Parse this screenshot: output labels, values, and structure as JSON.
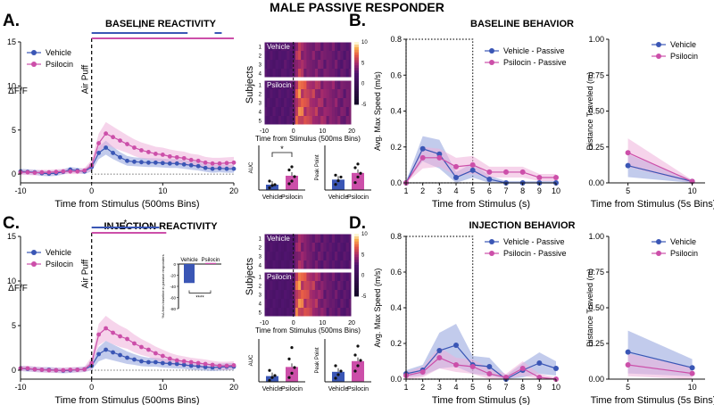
{
  "figure": {
    "title": "MALE PASSIVE RESPONDER",
    "panel_letters": [
      "A.",
      "B.",
      "C.",
      "D."
    ]
  },
  "colors": {
    "vehicle": "#3a56b5",
    "psilocin": "#cc4fa9",
    "vehicle_band": "#8fa0dd",
    "psilocin_band": "#eeb0da"
  },
  "chart_data": [
    {
      "id": "A-trace",
      "type": "line",
      "title": "BASELINE REACTIVITY",
      "xlabel": "Time from Stimulus (500ms Bins)",
      "ylabel": "ΔF/F",
      "xlim": [
        -10,
        20
      ],
      "ylim": [
        -1,
        15
      ],
      "xticks": [
        -10,
        0,
        10,
        20
      ],
      "yticks": [
        0,
        5,
        10,
        15
      ],
      "annotation": "Air Puff",
      "significance": "*",
      "sig_bars": [
        {
          "series": "Vehicle",
          "from": 0,
          "to": 13.5
        },
        {
          "series": "Vehicle",
          "from": 17.3,
          "to": 18.3
        },
        {
          "series": "Psilocin",
          "from": 0,
          "to": 20
        }
      ],
      "legend": [
        "Vehicle",
        "Psilocin"
      ],
      "legend_position": "top-left",
      "x": [
        -10,
        -9,
        -8,
        -7,
        -6,
        -5,
        -4,
        -3,
        -2,
        -1,
        0,
        1,
        2,
        3,
        4,
        5,
        6,
        7,
        8,
        9,
        10,
        11,
        12,
        13,
        14,
        15,
        16,
        17,
        18,
        19,
        20
      ],
      "series": [
        {
          "name": "Vehicle",
          "values": [
            0.3,
            0.25,
            0.2,
            0.1,
            0.05,
            0.1,
            0.25,
            0.5,
            0.4,
            0.3,
            0.8,
            2.4,
            3.0,
            2.4,
            1.9,
            1.5,
            1.4,
            1.35,
            1.3,
            1.3,
            1.25,
            1.2,
            1.2,
            1.1,
            1.0,
            0.9,
            0.7,
            0.6,
            0.65,
            0.6,
            0.6
          ],
          "band": [
            0.3,
            0.3,
            0.3,
            0.3,
            0.3,
            0.3,
            0.3,
            0.3,
            0.3,
            0.3,
            0.5,
            0.7,
            0.8,
            0.7,
            0.6,
            0.55,
            0.5,
            0.5,
            0.5,
            0.5,
            0.5,
            0.5,
            0.5,
            0.5,
            0.5,
            0.5,
            0.45,
            0.45,
            0.45,
            0.45,
            0.45
          ]
        },
        {
          "name": "Psilocin",
          "values": [
            0.2,
            0.2,
            0.15,
            0.2,
            0.2,
            0.25,
            0.3,
            0.3,
            0.3,
            0.4,
            1.0,
            3.5,
            4.6,
            4.2,
            3.8,
            3.4,
            3.0,
            2.7,
            2.5,
            2.3,
            2.2,
            2.0,
            1.9,
            1.8,
            1.6,
            1.5,
            1.3,
            1.2,
            1.2,
            1.25,
            1.3
          ],
          "band": [
            0.3,
            0.3,
            0.3,
            0.3,
            0.3,
            0.3,
            0.3,
            0.3,
            0.3,
            0.3,
            0.6,
            1.1,
            1.3,
            1.2,
            1.1,
            1.0,
            0.95,
            0.9,
            0.85,
            0.8,
            0.8,
            0.8,
            0.75,
            0.75,
            0.7,
            0.7,
            0.65,
            0.65,
            0.65,
            0.65,
            0.65
          ]
        }
      ]
    },
    {
      "id": "A-heatmap",
      "type": "heatmap",
      "xlabel": "Time from Stimulus (500ms Bins)",
      "ylabel": "Subjects",
      "xticks": [
        -10,
        0,
        10,
        20
      ],
      "colorbar_ticks": [
        10,
        5,
        0,
        -5
      ],
      "groups": [
        {
          "label": "Vehicle",
          "rows": [
            "1",
            "2",
            "3",
            "4"
          ]
        },
        {
          "label": "Psilocin",
          "rows": [
            "1",
            "2",
            "3",
            "4",
            "5"
          ]
        }
      ]
    },
    {
      "id": "A-auc",
      "type": "bar",
      "ylabel": "AUC",
      "categories": [
        "Vehicle",
        "Psilocin"
      ],
      "values": [
        12,
        32
      ],
      "ylim": [
        0,
        100
      ],
      "significance": "*",
      "points": [
        [
          5,
          10,
          12,
          20
        ],
        [
          14,
          20,
          30,
          45,
          52
        ]
      ]
    },
    {
      "id": "A-peak",
      "type": "bar",
      "ylabel": "Peak Point",
      "categories": [
        "Vehicle",
        "Psilocin"
      ],
      "values": [
        2.8,
        4.6
      ],
      "ylim": [
        0,
        12
      ],
      "points": [
        [
          1.5,
          2.5,
          3.5,
          4.0
        ],
        [
          2.0,
          3.5,
          4.5,
          6.0,
          7.0
        ]
      ]
    },
    {
      "id": "B-speed",
      "type": "line",
      "title": "BASELINE BEHAVIOR",
      "xlabel": "Time from Stimulus (s)",
      "ylabel": "Avg. Max Speed (m/s)",
      "xlim": [
        1,
        10
      ],
      "ylim": [
        0,
        0.8
      ],
      "xticks": [
        1,
        2,
        3,
        4,
        5,
        6,
        7,
        8,
        9,
        10
      ],
      "yticks": [
        0.0,
        0.2,
        0.4,
        0.6,
        0.8
      ],
      "legend": [
        "Vehicle - Passive",
        "Psilocin - Passive"
      ],
      "legend_position": "top-right",
      "dotted_box": [
        1,
        5
      ],
      "x": [
        1,
        2,
        3,
        4,
        5,
        6,
        7,
        8,
        9,
        10
      ],
      "series": [
        {
          "name": "Vehicle - Passive",
          "values": [
            0.0,
            0.19,
            0.16,
            0.03,
            0.07,
            0.02,
            0.0,
            0.0,
            0.0,
            0.0
          ],
          "band": [
            0.01,
            0.07,
            0.08,
            0.03,
            0.04,
            0.02,
            0.01,
            0.01,
            0.01,
            0.01
          ]
        },
        {
          "name": "Psilocin - Passive",
          "values": [
            0.0,
            0.14,
            0.14,
            0.09,
            0.1,
            0.06,
            0.06,
            0.06,
            0.03,
            0.03
          ],
          "band": [
            0.01,
            0.06,
            0.05,
            0.05,
            0.05,
            0.03,
            0.03,
            0.03,
            0.02,
            0.02
          ]
        }
      ]
    },
    {
      "id": "B-distance",
      "type": "line",
      "xlabel": "Time from Stimulus (5s Bins)",
      "ylabel": "Distance Traveled (m)",
      "xlim": [
        3.5,
        11
      ],
      "ylim": [
        0,
        1.0
      ],
      "xticks": [
        5,
        10
      ],
      "yticks": [
        0.0,
        0.25,
        0.5,
        0.75,
        1.0
      ],
      "legend": [
        "Vehicle",
        "Psilocin"
      ],
      "legend_position": "top-right",
      "x": [
        5,
        10
      ],
      "series": [
        {
          "name": "Vehicle",
          "values": [
            0.12,
            0.01
          ],
          "band": [
            0.08,
            0.01
          ]
        },
        {
          "name": "Psilocin",
          "values": [
            0.21,
            0.01
          ],
          "band": [
            0.1,
            0.01
          ]
        }
      ]
    },
    {
      "id": "C-trace",
      "type": "line",
      "title": "INJECTION REACTIVITY",
      "xlabel": "Time from Stimulus (500ms Bins)",
      "ylabel": "ΔF/F",
      "xlim": [
        -10,
        20
      ],
      "ylim": [
        -1,
        15
      ],
      "xticks": [
        -10,
        0,
        10,
        20
      ],
      "yticks": [
        0,
        5,
        10,
        15
      ],
      "annotation": "Air Puff",
      "significance": "*",
      "sig_bars": [
        {
          "series": "Vehicle",
          "from": 0,
          "to": 9.5
        },
        {
          "series": "Psilocin",
          "from": 0,
          "to": 10.5
        }
      ],
      "legend": [
        "Vehicle",
        "Psilocin"
      ],
      "legend_position": "top-left",
      "x": [
        -10,
        -9,
        -8,
        -7,
        -6,
        -5,
        -4,
        -3,
        -2,
        -1,
        0,
        1,
        2,
        3,
        4,
        5,
        6,
        7,
        8,
        9,
        10,
        11,
        12,
        13,
        14,
        15,
        16,
        17,
        18,
        19,
        20
      ],
      "series": [
        {
          "name": "Vehicle",
          "values": [
            0.2,
            0.15,
            0.1,
            0.05,
            0.05,
            0.0,
            -0.05,
            0.0,
            0.05,
            0.1,
            0.5,
            1.8,
            2.3,
            2.0,
            1.7,
            1.4,
            1.2,
            1.0,
            0.9,
            0.9,
            0.8,
            0.75,
            0.7,
            0.6,
            0.5,
            0.45,
            0.35,
            0.3,
            0.35,
            0.4,
            0.4
          ],
          "band": [
            0.3,
            0.3,
            0.3,
            0.3,
            0.3,
            0.3,
            0.3,
            0.3,
            0.3,
            0.3,
            0.5,
            0.8,
            1.0,
            0.9,
            0.8,
            0.7,
            0.6,
            0.55,
            0.5,
            0.5,
            0.5,
            0.5,
            0.5,
            0.45,
            0.45,
            0.45,
            0.4,
            0.4,
            0.4,
            0.4,
            0.4
          ]
        },
        {
          "name": "Psilocin",
          "values": [
            0.2,
            0.2,
            0.1,
            0.05,
            0.0,
            0.0,
            0.0,
            0.05,
            0.05,
            0.1,
            0.8,
            4.0,
            4.7,
            4.2,
            3.8,
            3.5,
            3.0,
            2.6,
            2.3,
            1.9,
            1.6,
            1.3,
            1.1,
            1.0,
            0.9,
            0.8,
            0.7,
            0.6,
            0.5,
            0.5,
            0.55
          ],
          "band": [
            0.3,
            0.3,
            0.3,
            0.3,
            0.3,
            0.3,
            0.3,
            0.3,
            0.3,
            0.3,
            0.7,
            1.2,
            1.4,
            1.3,
            1.2,
            1.1,
            1.0,
            0.9,
            0.8,
            0.75,
            0.7,
            0.65,
            0.6,
            0.55,
            0.5,
            0.5,
            0.5,
            0.45,
            0.45,
            0.45,
            0.45
          ]
        }
      ]
    },
    {
      "id": "C-inset",
      "type": "bar",
      "ylabel": "%Δ from baseline in passive responders",
      "categories": [
        "Vehicle",
        "Psilocin"
      ],
      "values": [
        -34,
        2
      ],
      "ylim": [
        -80,
        0
      ],
      "yticks": [
        0,
        -20,
        -40,
        -60,
        -80
      ],
      "significance": "****"
    },
    {
      "id": "C-heatmap",
      "type": "heatmap",
      "xlabel": "Time from Stimulus (500ms Bins)",
      "ylabel": "Subjects",
      "xticks": [
        -10,
        0,
        10,
        20
      ],
      "colorbar_ticks": [
        10,
        5,
        0,
        -5
      ],
      "groups": [
        {
          "label": "Vehicle",
          "rows": [
            "1",
            "2",
            "3",
            "4"
          ]
        },
        {
          "label": "Psilocin",
          "rows": [
            "1",
            "2",
            "3",
            "4",
            "5"
          ]
        }
      ]
    },
    {
      "id": "C-auc",
      "type": "bar",
      "ylabel": "AUC",
      "categories": [
        "Vehicle",
        "Psilocin"
      ],
      "values": [
        20,
        52
      ],
      "ylim": [
        0,
        150
      ],
      "points": [
        [
          5,
          15,
          22,
          40
        ],
        [
          15,
          30,
          50,
          80,
          120
        ]
      ]
    },
    {
      "id": "C-peak",
      "type": "bar",
      "ylabel": "Peak Point",
      "categories": [
        "Vehicle",
        "Psilocin"
      ],
      "values": [
        2.8,
        5.8
      ],
      "ylim": [
        0,
        12
      ],
      "points": [
        [
          1.0,
          2.0,
          3.0,
          4.5
        ],
        [
          3.0,
          4.5,
          6.0,
          7.5,
          10.0
        ]
      ]
    },
    {
      "id": "D-speed",
      "type": "line",
      "title": "INJECTION BEHAVIOR",
      "xlabel": "Time from Stimulus (s)",
      "ylabel": "Avg. Max Speed (m/s)",
      "xlim": [
        1,
        10
      ],
      "ylim": [
        0,
        0.8
      ],
      "xticks": [
        1,
        2,
        3,
        4,
        5,
        6,
        7,
        8,
        9,
        10
      ],
      "yticks": [
        0.0,
        0.2,
        0.4,
        0.6,
        0.8
      ],
      "legend": [
        "Vehicle - Passive",
        "Psilocin - Passive"
      ],
      "legend_position": "top-right",
      "dotted_box": [
        1,
        5
      ],
      "x": [
        1,
        2,
        3,
        4,
        5,
        6,
        7,
        8,
        9,
        10
      ],
      "series": [
        {
          "name": "Vehicle - Passive",
          "values": [
            0.03,
            0.05,
            0.16,
            0.19,
            0.08,
            0.07,
            0.0,
            0.05,
            0.09,
            0.06
          ],
          "band": [
            0.02,
            0.03,
            0.1,
            0.12,
            0.05,
            0.05,
            0.02,
            0.04,
            0.06,
            0.04
          ]
        },
        {
          "name": "Psilocin - Passive",
          "values": [
            0.02,
            0.04,
            0.12,
            0.08,
            0.07,
            0.03,
            0.01,
            0.06,
            0.01,
            0.0
          ],
          "band": [
            0.02,
            0.03,
            0.06,
            0.04,
            0.04,
            0.03,
            0.02,
            0.04,
            0.02,
            0.01
          ]
        }
      ]
    },
    {
      "id": "D-distance",
      "type": "line",
      "xlabel": "Time from Stimulus (5s Bins)",
      "ylabel": "Distance Traveled (m)",
      "xlim": [
        3.5,
        11
      ],
      "ylim": [
        0,
        1.0
      ],
      "xticks": [
        5,
        10
      ],
      "yticks": [
        0.0,
        0.25,
        0.5,
        0.75,
        1.0
      ],
      "legend": [
        "Vehicle",
        "Psilocin"
      ],
      "legend_position": "top-right",
      "x": [
        5,
        10
      ],
      "series": [
        {
          "name": "Vehicle",
          "values": [
            0.19,
            0.08
          ],
          "band": [
            0.15,
            0.06
          ]
        },
        {
          "name": "Psilocin",
          "values": [
            0.1,
            0.04
          ],
          "band": [
            0.08,
            0.04
          ]
        }
      ]
    }
  ]
}
